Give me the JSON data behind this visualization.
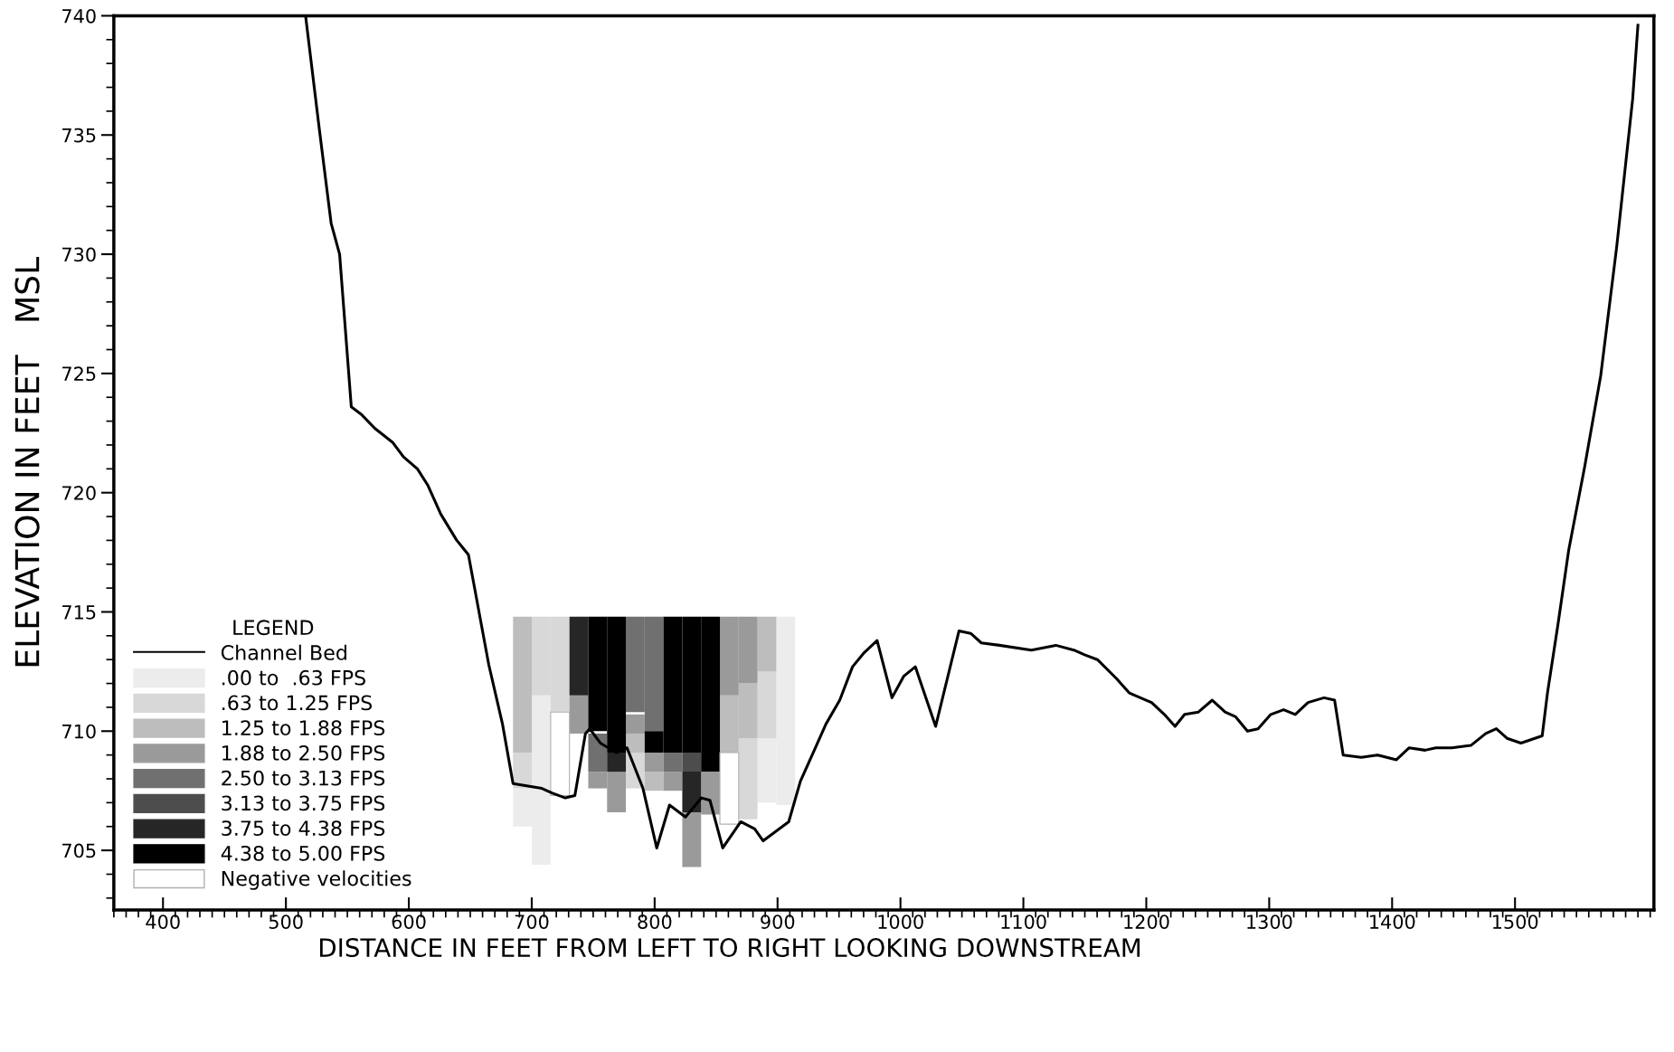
{
  "chart_data": {
    "type": "line",
    "xlabel": "DISTANCE IN FEET FROM LEFT TO RIGHT LOOKING DOWNSTREAM",
    "ylabel": "ELEVATION IN FEET   MSL",
    "legend_title": "LEGEND",
    "legend": "bottom left",
    "grid": false,
    "xlim": [
      360,
      1613
    ],
    "xticks": [
      400,
      500,
      600,
      700,
      800,
      900,
      1000,
      1100,
      1200,
      1300,
      1400,
      1500
    ],
    "ylim": [
      702.5,
      740
    ],
    "yticks": [
      705,
      710,
      715,
      720,
      725,
      730,
      735,
      740
    ],
    "series": [
      {
        "name": "Channel Bed",
        "color": "#000000",
        "x": [
          516,
          527.3,
          536.8,
          543.7,
          553.2,
          561,
          572.3,
          587,
          595.7,
          607,
          615.6,
          626,
          639,
          648.5,
          665,
          676.2,
          684.8,
          697,
          708.2,
          716.9,
          727.3,
          735.1,
          743.7,
          747.2,
          755.8,
          768.8,
          777.5,
          790.5,
          801.7,
          812.1,
          825.1,
          838.1,
          845,
          855.4,
          870.1,
          881.4,
          888.3,
          898.7,
          909.1,
          918.6,
          929,
          939.4,
          950.6,
          961,
          970.6,
          981,
          993.1,
          1002.6,
          1012.1,
          1028.6,
          1047.6,
          1057.1,
          1065.8,
          1080.5,
          1106.5,
          1126.4,
          1141.1,
          1149.8,
          1160.2,
          1175.8,
          1186.2,
          1204.3,
          1214.7,
          1223.4,
          1231.2,
          1242.4,
          1253.7,
          1264.1,
          1272.7,
          1282.3,
          1290.9,
          1301.3,
          1311.7,
          1321.2,
          1331.6,
          1344.6,
          1353.2,
          1360.2,
          1374.9,
          1387.9,
          1403.5,
          1413.9,
          1426.8,
          1435.5,
          1448.5,
          1464.1,
          1476.2,
          1484.8,
          1493.5,
          1504.8,
          1522.1,
          1526.4,
          1535,
          1543.7,
          1556.7,
          1569.7,
          1582.7,
          1595.7,
          1600
        ],
        "values": [
          740,
          735.2,
          731.3,
          730.0,
          723.6,
          723.3,
          722.7,
          722.1,
          721.5,
          721.0,
          720.3,
          719.1,
          718.0,
          717.4,
          712.8,
          710.3,
          707.8,
          707.7,
          707.6,
          707.4,
          707.2,
          707.3,
          709.9,
          710.1,
          709.5,
          709.1,
          709.3,
          707.6,
          705.1,
          706.9,
          706.4,
          707.2,
          707.1,
          705.1,
          706.2,
          705.9,
          705.4,
          705.8,
          706.2,
          707.9,
          709.1,
          710.3,
          711.3,
          712.7,
          713.3,
          713.8,
          711.4,
          712.3,
          712.7,
          710.2,
          714.2,
          714.1,
          713.7,
          713.6,
          713.4,
          713.6,
          713.4,
          713.2,
          713.0,
          712.2,
          711.6,
          711.2,
          710.7,
          710.2,
          710.7,
          710.8,
          711.3,
          710.8,
          710.6,
          710.0,
          710.1,
          710.7,
          710.9,
          710.7,
          711.2,
          711.4,
          711.3,
          709.0,
          708.9,
          709.0,
          708.8,
          709.3,
          709.2,
          709.3,
          709.3,
          709.4,
          709.9,
          710.1,
          709.7,
          709.5,
          709.8,
          711.6,
          714.5,
          717.6,
          721.1,
          724.9,
          730.3,
          736.5,
          739.6
        ]
      },
      {
        "name": ".00 to  .63 FPS",
        "type": "bar",
        "color": "#ececec",
        "x": [
          692.45,
          707.75,
          891.35,
          906.65
        ],
        "base": [
          706.0,
          704.4,
          707.0,
          706.9
        ],
        "values": [
          1.6,
          7.1,
          2.7,
          7.9
        ]
      },
      {
        "name": ".63 to 1.25 FPS",
        "type": "bar",
        "color": "#d8d8d8",
        "x": [
          692.45,
          707.75,
          723.05,
          784.25,
          876.05,
          891.35
        ],
        "base": [
          707.6,
          711.5,
          710.8,
          707.6,
          706.3,
          709.7
        ],
        "values": [
          1.5,
          3.3,
          4.0,
          1.5,
          3.4,
          2.8
        ]
      },
      {
        "name": "1.25 to 1.88 FPS",
        "type": "bar",
        "color": "#bdbdbd",
        "x": [
          692.45,
          784.25,
          799.55,
          860.75,
          876.05,
          891.35
        ],
        "base": [
          709.1,
          709.1,
          707.5,
          709.1,
          709.7,
          712.5
        ],
        "values": [
          5.7,
          0.9,
          0.8,
          2.4,
          2.3,
          2.3
        ]
      },
      {
        "name": "1.88 to 2.50 FPS",
        "type": "bar",
        "color": "#9a9a9a",
        "x": [
          738.35,
          753.65,
          768.95,
          784.25,
          799.55,
          814.85,
          830.15,
          845.45,
          860.75,
          876.05
        ],
        "base": [
          709.9,
          707.6,
          706.6,
          709.9,
          708.3,
          707.5,
          704.3,
          706.5,
          711.5,
          712.0
        ],
        "values": [
          1.6,
          0.7,
          1.7,
          0.8,
          0.8,
          0.8,
          2.3,
          1.8,
          3.3,
          2.8
        ]
      },
      {
        "name": "2.50 to 3.13 FPS",
        "type": "bar",
        "color": "#707070",
        "x": [
          753.65,
          784.25,
          799.55,
          814.85
        ],
        "base": [
          708.3,
          710.8,
          710.0,
          708.3
        ],
        "values": [
          1.6,
          4.0,
          4.8,
          0.8
        ]
      },
      {
        "name": "3.13 to 3.75 FPS",
        "type": "bar",
        "color": "#4d4d4d",
        "x": [
          830.15
        ],
        "base": [
          708.3
        ],
        "values": [
          0.8
        ]
      },
      {
        "name": "3.75 to 4.38 FPS",
        "type": "bar",
        "color": "#262626",
        "x": [
          738.35,
          768.95,
          830.15
        ],
        "base": [
          711.5,
          708.3,
          706.6
        ],
        "values": [
          3.3,
          0.8,
          1.7
        ]
      },
      {
        "name": "4.38 to 5.00 FPS",
        "type": "bar",
        "color": "#000000",
        "x": [
          753.65,
          768.95,
          799.55,
          814.85,
          830.15,
          845.45
        ],
        "base": [
          710.0,
          709.1,
          709.1,
          709.1,
          709.1,
          708.3
        ],
        "values": [
          4.8,
          5.7,
          0.9,
          5.7,
          5.7,
          6.5
        ]
      },
      {
        "name": "Negative velocities",
        "type": "bar",
        "color": "#ffffff",
        "x": [
          723.05,
          860.75
        ],
        "base": [
          707.3,
          706.1
        ],
        "values": [
          3.5,
          3.0
        ]
      }
    ]
  }
}
